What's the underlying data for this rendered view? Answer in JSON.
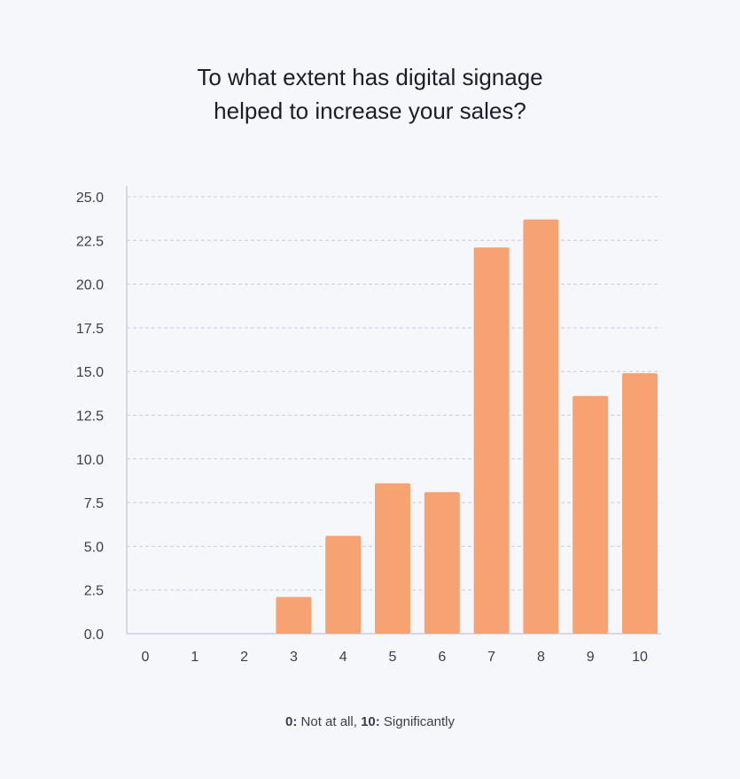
{
  "chart_data": {
    "type": "bar",
    "title": [
      "To what extent has digital signage",
      "helped to increase your sales?"
    ],
    "categories": [
      "0",
      "1",
      "2",
      "3",
      "4",
      "5",
      "6",
      "7",
      "8",
      "9",
      "10"
    ],
    "values": [
      0,
      0,
      0,
      2.1,
      5.6,
      8.6,
      8.1,
      22.1,
      23.7,
      13.6,
      14.9
    ],
    "ylim": [
      0,
      25
    ],
    "yticks": [
      "0.0",
      "2.5",
      "5.0",
      "7.5",
      "10.0",
      "12.5",
      "15.0",
      "17.5",
      "20.0",
      "22.5",
      "25.0"
    ],
    "grid": true,
    "bar_color": "#f6a273"
  },
  "footnote": {
    "low_key": "0:",
    "low_text": " Not at all, ",
    "high_key": "10:",
    "high_text": " Significantly"
  }
}
